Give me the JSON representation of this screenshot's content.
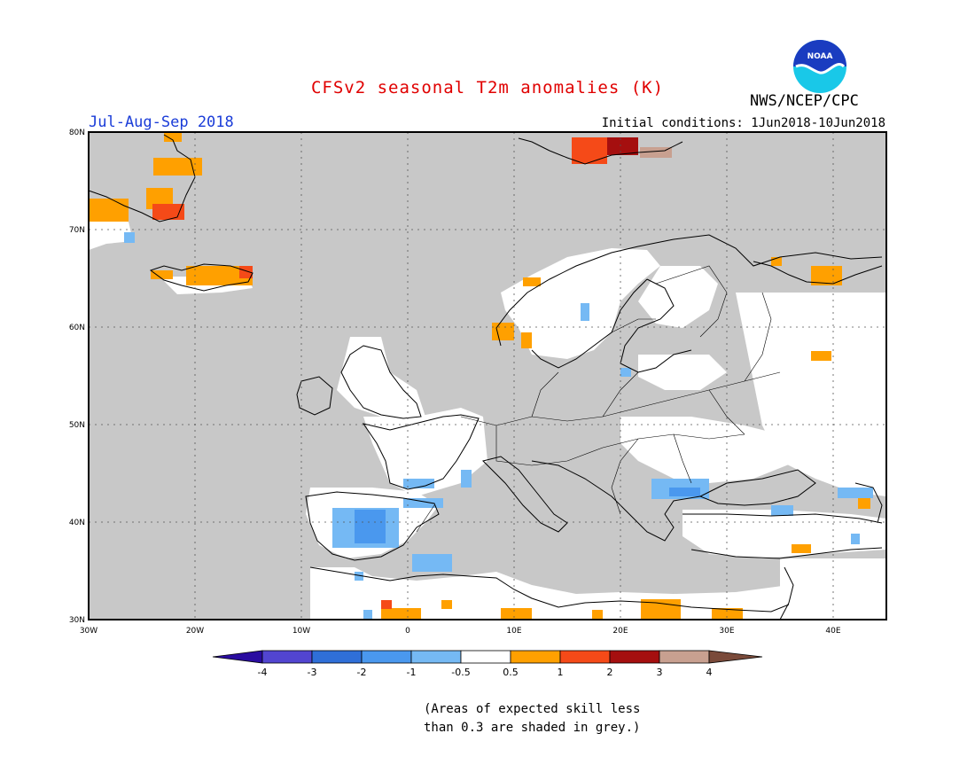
{
  "title": "CFSv2 seasonal T2m anomalies (K)",
  "period": "Jul-Aug-Sep 2018",
  "initial_conditions": "Initial conditions: 1Jun2018-10Jun2018",
  "agency": "NWS/NCEP/CPC",
  "logo_text": "NOAA",
  "note_line1": "(Areas of expected skill less",
  "note_line2": "than 0.3 are shaded in grey.)",
  "colors": {
    "title": "#e00000",
    "period": "#1a3cd8",
    "grey_low_skill": "#c8c8c8",
    "neutral": "#ffffff",
    "blue_light": "#75b9f4",
    "blue_mid": "#4a98ee",
    "orange": "#ffa000",
    "red_orange": "#f54a18"
  },
  "map": {
    "lon_range": [
      -30,
      45
    ],
    "lat_range": [
      30,
      80
    ],
    "x_ticks": [
      "30W",
      "20W",
      "10W",
      "0",
      "10E",
      "20E",
      "30E",
      "40E"
    ],
    "y_ticks": [
      "30N",
      "40N",
      "50N",
      "60N",
      "70N",
      "80N"
    ]
  },
  "colorbar": {
    "bins": [
      {
        "color": "#2a0ca0"
      },
      {
        "color": "#5245d0"
      },
      {
        "color": "#2f6fd8"
      },
      {
        "color": "#4a98ee"
      },
      {
        "color": "#75b9f4"
      },
      {
        "color": "#ffffff"
      },
      {
        "color": "#ffa000"
      },
      {
        "color": "#f54a18"
      },
      {
        "color": "#a50f0f"
      },
      {
        "color": "#c8a090"
      },
      {
        "color": "#7a4a3a"
      }
    ],
    "labels": [
      "-4",
      "-3",
      "-2",
      "-1",
      "-0.5",
      "0.5",
      "1",
      "2",
      "3",
      "4"
    ]
  }
}
